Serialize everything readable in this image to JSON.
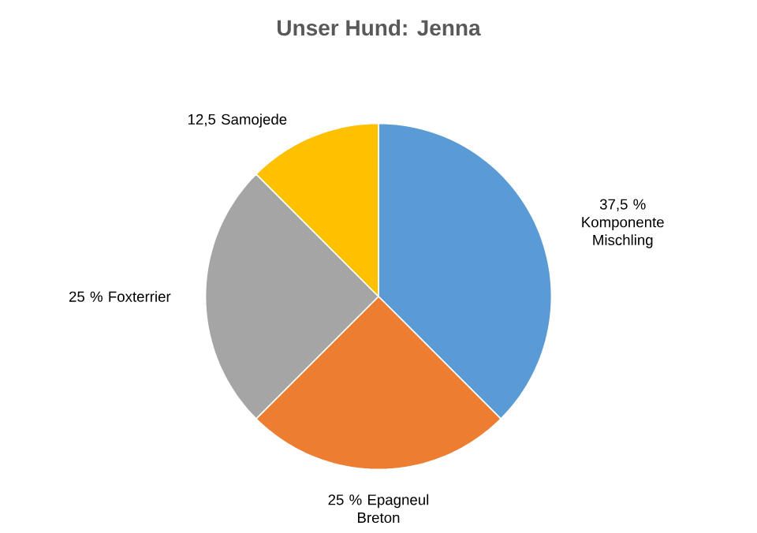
{
  "chart_data": {
    "type": "pie",
    "title": "Unser Hund: Jenna",
    "categories": [
      "Komponente Mischling",
      "Epagneul Breton",
      "Foxterrier",
      "Samojede"
    ],
    "values": [
      37.5,
      25,
      25,
      12.5
    ],
    "value_labels": [
      "37,5 %",
      "25 %",
      "25 %",
      "12,5"
    ],
    "colors": [
      "#5b9bd5",
      "#ed7d31",
      "#a5a5a5",
      "#ffc000"
    ]
  }
}
